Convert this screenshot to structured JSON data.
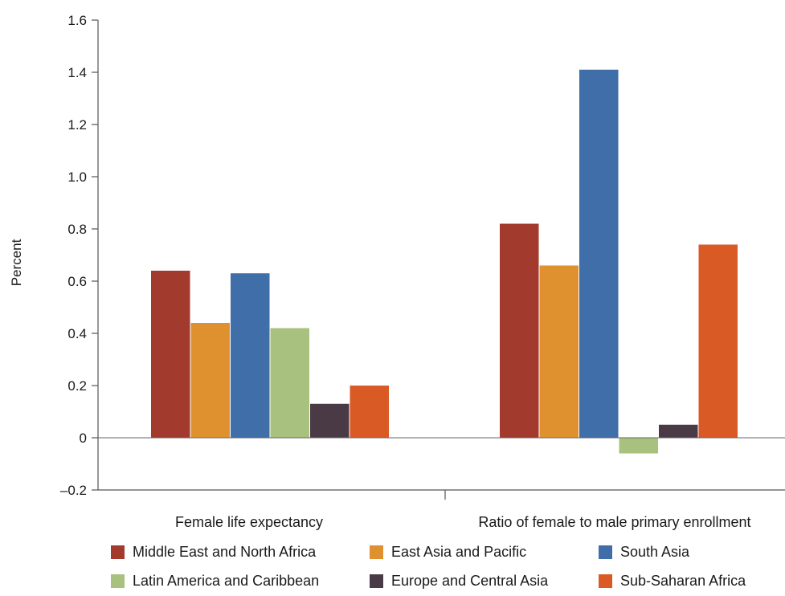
{
  "chart_data": {
    "type": "bar",
    "title": "",
    "ylabel": "Percent",
    "xlabel": "",
    "ylim": [
      -0.2,
      1.6
    ],
    "yticks": [
      -0.2,
      0,
      0.2,
      0.4,
      0.6,
      0.8,
      1.0,
      1.2,
      1.4,
      1.6
    ],
    "ytick_labels": [
      "–0.2",
      "0",
      "0.2",
      "0.4",
      "0.6",
      "0.8",
      "1.0",
      "1.2",
      "1.4",
      "1.6"
    ],
    "categories": [
      "Female life expectancy",
      "Ratio of female to male primary enrollment"
    ],
    "series": [
      {
        "name": "Middle East and North Africa",
        "color": "#a23b2e",
        "values": [
          0.64,
          0.82
        ]
      },
      {
        "name": "East Asia and Pacific",
        "color": "#e0912f",
        "values": [
          0.44,
          0.66
        ]
      },
      {
        "name": "South Asia",
        "color": "#3f6ea8",
        "values": [
          0.63,
          1.41
        ]
      },
      {
        "name": "Latin America and Caribbean",
        "color": "#a9c17f",
        "values": [
          0.42,
          -0.06
        ]
      },
      {
        "name": "Europe and Central Asia",
        "color": "#4a3a45",
        "values": [
          0.13,
          0.05
        ]
      },
      {
        "name": "Sub-Saharan Africa",
        "color": "#d95a24",
        "values": [
          0.2,
          0.74
        ]
      }
    ],
    "grid": false,
    "legend_position": "bottom"
  }
}
